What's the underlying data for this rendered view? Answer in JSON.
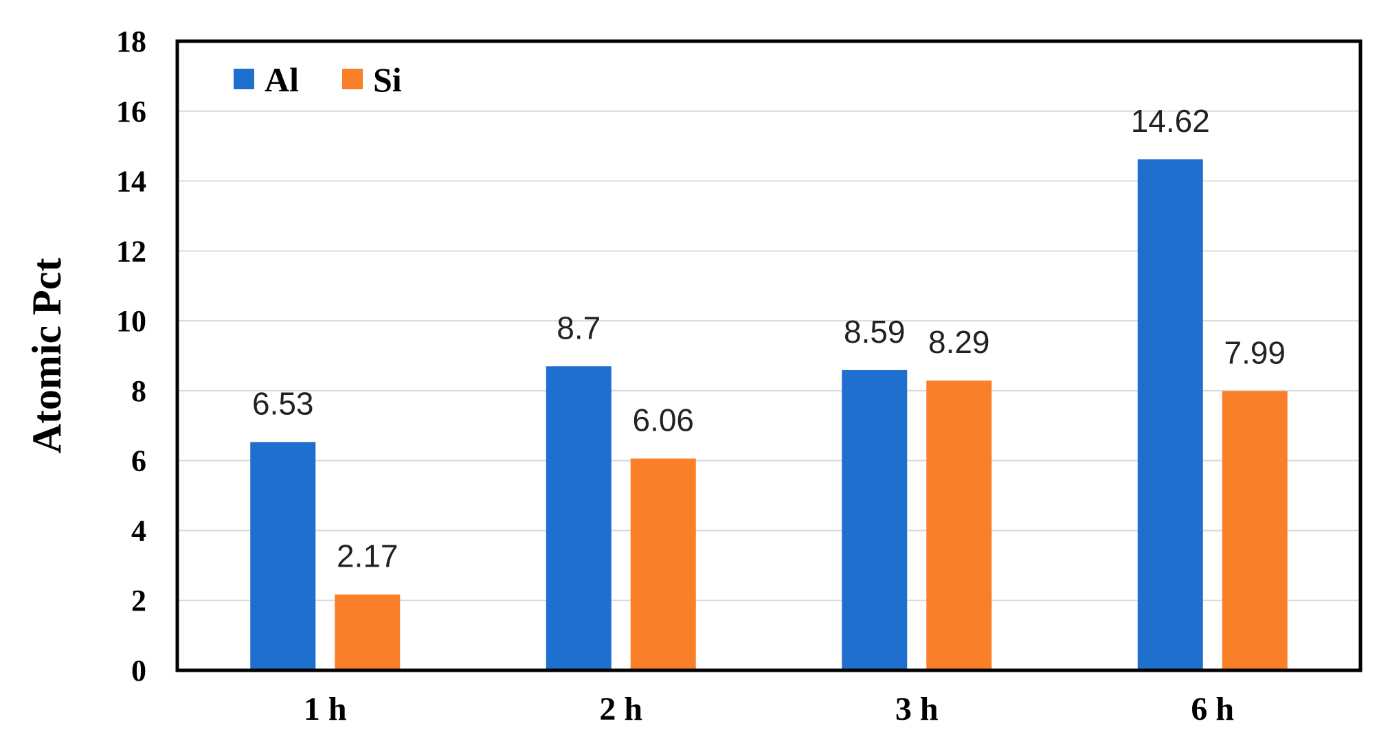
{
  "chart_data": {
    "type": "bar",
    "categories": [
      "1 h",
      "2 h",
      "3 h",
      "6 h"
    ],
    "series": [
      {
        "name": "Al",
        "values": [
          6.53,
          8.7,
          8.59,
          14.62
        ],
        "color": "#1f6fcf"
      },
      {
        "name": "Si",
        "values": [
          2.17,
          6.06,
          8.29,
          7.99
        ],
        "color": "#f97f28"
      }
    ],
    "data_labels": [
      [
        "6.53",
        "8.7",
        "8.59",
        "14.62"
      ],
      [
        "2.17",
        "6.06",
        "8.29",
        "7.99"
      ]
    ],
    "yticks": [
      "0",
      "2",
      "4",
      "6",
      "8",
      "10",
      "12",
      "14",
      "16",
      "18"
    ],
    "ylabel": "Atomic Pct",
    "xlabel": "",
    "ylim": [
      0,
      18
    ],
    "grid": true,
    "legend_position": "top-left"
  }
}
